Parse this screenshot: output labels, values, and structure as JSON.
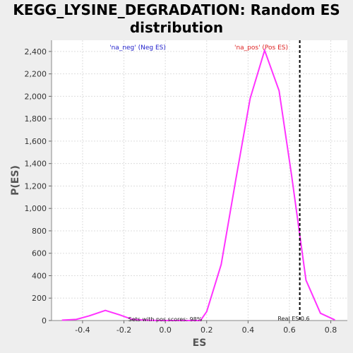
{
  "chart_data": {
    "type": "line",
    "title_line1": "KEGG_LYSINE_DEGRADATION: Random ES",
    "title_line2": "distribution",
    "xlabel": "ES",
    "ylabel": "P(ES)",
    "xlim": [
      -0.55,
      0.88
    ],
    "ylim": [
      0,
      2500
    ],
    "xticks": [
      -0.4,
      -0.2,
      0.0,
      0.2,
      0.4,
      0.6,
      0.8
    ],
    "xtick_labels": [
      "-0.4",
      "-0.2",
      "0.0",
      "0.2",
      "0.4",
      "0.6",
      "0.8"
    ],
    "yticks": [
      0,
      200,
      400,
      600,
      800,
      1000,
      1200,
      1400,
      1600,
      1800,
      2000,
      2200,
      2400
    ],
    "ytick_labels": [
      "0",
      "200",
      "400",
      "600",
      "800",
      "1,000",
      "1,200",
      "1,400",
      "1,600",
      "1,800",
      "2,000",
      "2,200",
      "2,400"
    ],
    "grid": true,
    "series": [
      {
        "name": "Random ES",
        "color": "#ff33ff",
        "x": [
          -0.5,
          -0.43,
          -0.37,
          -0.29,
          -0.22,
          -0.16,
          -0.09,
          -0.03,
          0.04,
          0.11,
          0.17,
          0.2,
          0.27,
          0.34,
          0.41,
          0.48,
          0.55,
          0.61,
          0.68,
          0.75,
          0.82
        ],
        "y": [
          3,
          10,
          40,
          90,
          50,
          10,
          3,
          0,
          0,
          0,
          0,
          80,
          500,
          1250,
          1980,
          2410,
          2050,
          1300,
          360,
          65,
          5
        ]
      }
    ],
    "real_es": {
      "value": 0.65,
      "label": "Real ES 0.6",
      "color": "#000000"
    },
    "legend": {
      "neg_label": "'na_neg' (Neg ES)",
      "neg_color": "#2222cc",
      "pos_label": "'na_pos' (Pos ES)",
      "pos_color": "#dd2222"
    },
    "annotation": "Sets with pos scores: 98%"
  }
}
